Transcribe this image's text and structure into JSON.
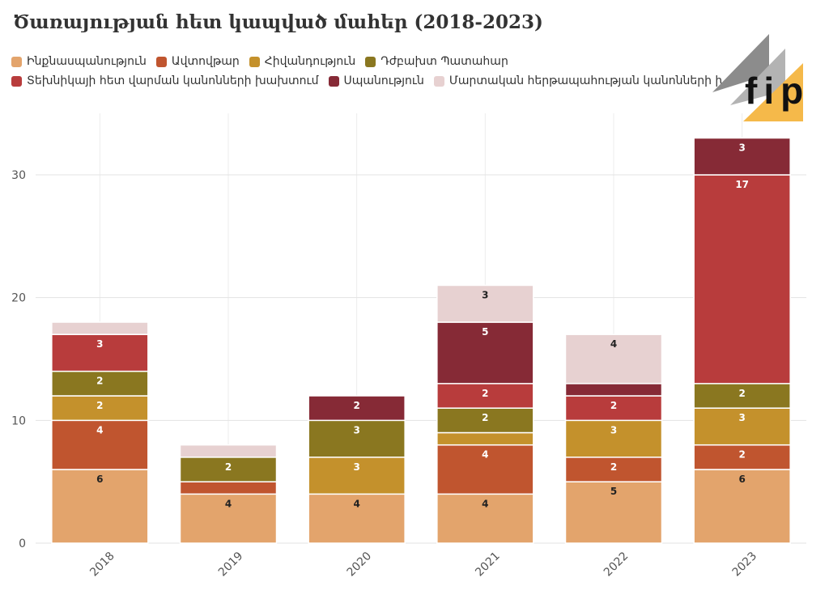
{
  "chart_data": {
    "type": "bar",
    "stacked": true,
    "title": "Ծառայության հետ կապված մահեր (2018-2023)",
    "xlabel": "",
    "ylabel": "",
    "categories": [
      "2018",
      "2019",
      "2020",
      "2021",
      "2022",
      "2023"
    ],
    "ylim": [
      0,
      35
    ],
    "yticks": [
      0,
      10,
      20,
      30
    ],
    "grid": true,
    "legend_position": "top",
    "series": [
      {
        "name": "Ինքնասպանություն",
        "color": "#e3a46c",
        "values": [
          6,
          4,
          4,
          4,
          5,
          6
        ]
      },
      {
        "name": "Ավտովթար",
        "color": "#c0552f",
        "values": [
          4,
          1,
          0,
          4,
          2,
          2
        ]
      },
      {
        "name": "Հիվանդություն",
        "color": "#c4912c",
        "values": [
          2,
          0,
          3,
          1,
          3,
          3
        ]
      },
      {
        "name": "Դժբախտ Պատահար",
        "color": "#8a7720",
        "values": [
          2,
          2,
          3,
          2,
          0,
          2
        ]
      },
      {
        "name": "Տեխնիկայի հետ վարման կանոնների խախտում",
        "color": "#b83c3c",
        "values": [
          3,
          0,
          0,
          2,
          2,
          17
        ]
      },
      {
        "name": "Սպանություն",
        "color": "#862a36",
        "values": [
          0,
          0,
          2,
          5,
          1,
          3
        ]
      },
      {
        "name": "Մարտական հերթապահության կանոնների խախտում",
        "color": "#e7d1d1",
        "values": [
          1,
          1,
          0,
          3,
          4,
          0
        ]
      }
    ],
    "labels": [
      [
        "6",
        "4",
        "4",
        "4",
        "5",
        "6"
      ],
      [
        "4",
        "",
        "",
        "4",
        "2",
        "2"
      ],
      [
        "2",
        "",
        "3",
        "",
        "3",
        "3"
      ],
      [
        "2",
        "2",
        "3",
        "2",
        "",
        "2"
      ],
      [
        "3",
        "",
        "",
        "2",
        "2",
        "17"
      ],
      [
        "",
        "",
        "2",
        "5",
        "",
        "3"
      ],
      [
        "",
        "",
        "",
        "3",
        "4",
        ""
      ]
    ]
  },
  "logo": {
    "text": "fip",
    "accent": "#f5b94a",
    "gray": "#8c8c8c"
  }
}
